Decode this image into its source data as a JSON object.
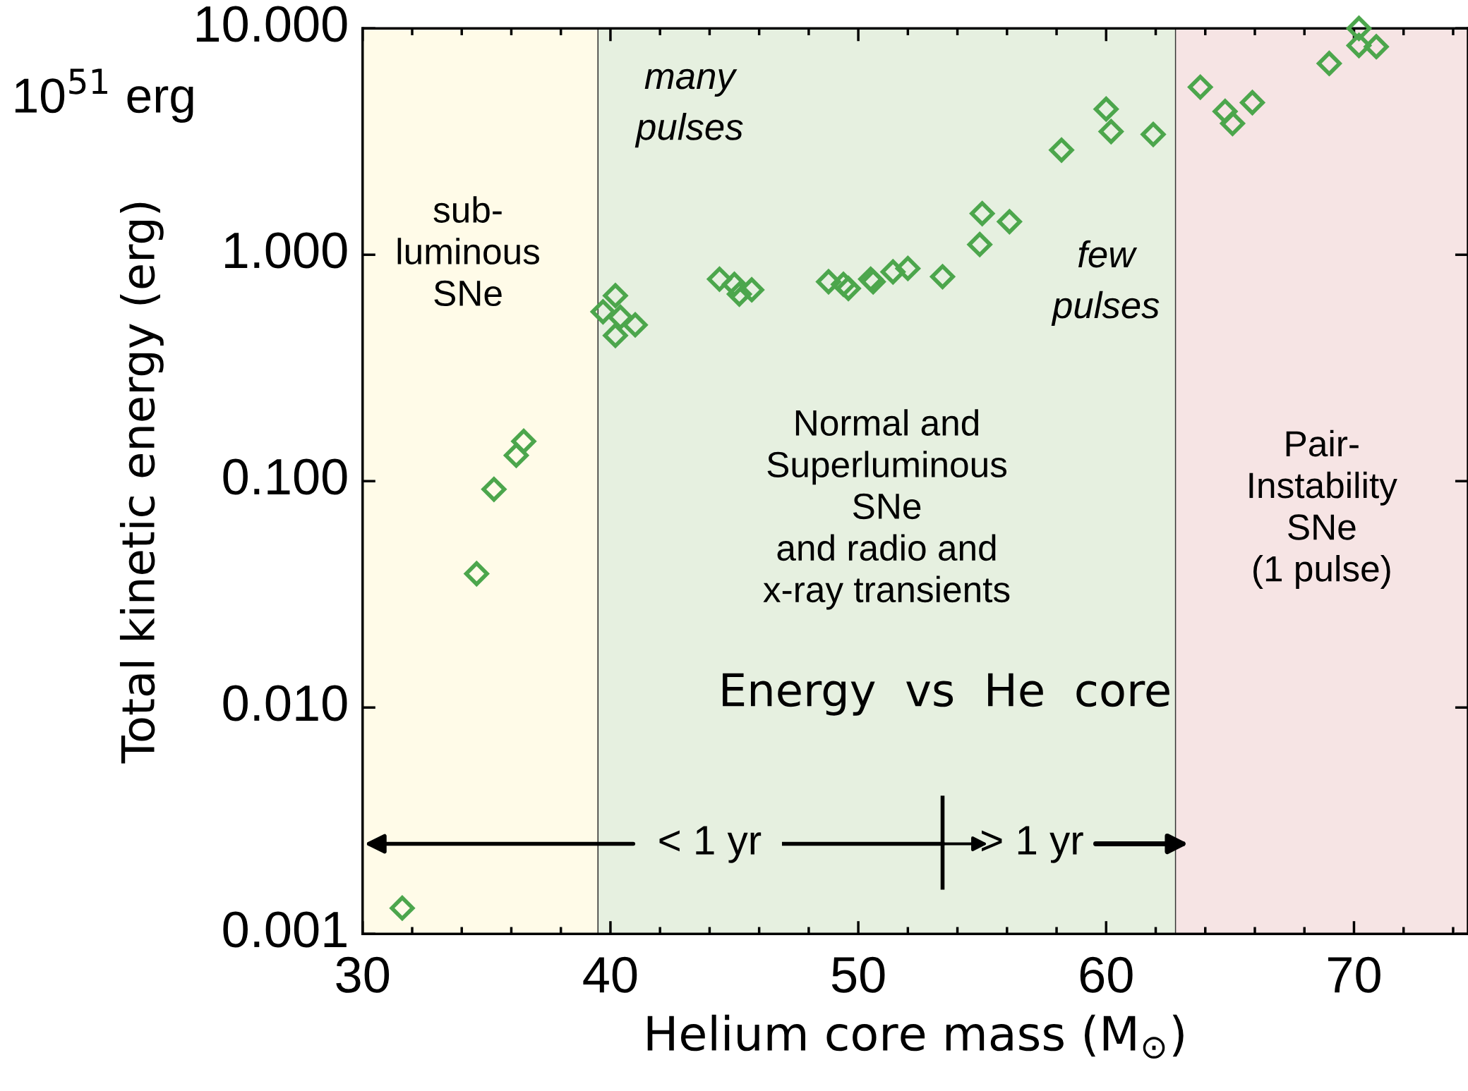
{
  "chart_data": {
    "type": "scatter",
    "xlabel": "Helium core mass (M$_{⊙}$)",
    "ylabel": "Total kinetic energy (erg)",
    "log": "y",
    "xlim": [
      30,
      74.6
    ],
    "ylim": [
      0.001,
      10
    ],
    "xticks": [
      30,
      40,
      50,
      60,
      70
    ],
    "yticks": [
      {
        "value": 0.001,
        "label": "0.001"
      },
      {
        "value": 0.01,
        "label": "0.010"
      },
      {
        "value": 0.1,
        "label": "0.100"
      },
      {
        "value": 1,
        "label": "1.000"
      },
      {
        "value": 10,
        "label": "10.000"
      }
    ],
    "marker": "diamond",
    "grid": false,
    "legend": false,
    "series": [
      {
        "color": "#4ca64c",
        "x": [
          31.6,
          34.6,
          35.3,
          36.2,
          36.5,
          39.7,
          40.2,
          40.4,
          40.2,
          41.0,
          44.4,
          45.0,
          45.2,
          45.7,
          48.8,
          49.4,
          49.6,
          50.5,
          50.6,
          51.4,
          52.0,
          53.4,
          54.9,
          55.0,
          56.1,
          58.2,
          60.0,
          60.2,
          61.9,
          63.8,
          64.8,
          65.1,
          65.9,
          69.0,
          70.2,
          70.9,
          70.2
        ],
        "values": [
          0.0013,
          0.039,
          0.092,
          0.13,
          0.15,
          0.56,
          0.66,
          0.53,
          0.44,
          0.49,
          0.78,
          0.74,
          0.67,
          0.7,
          0.76,
          0.74,
          0.71,
          0.78,
          0.76,
          0.84,
          0.87,
          0.8,
          1.11,
          1.52,
          1.4,
          2.9,
          4.4,
          3.5,
          3.4,
          5.5,
          4.3,
          3.8,
          4.7,
          7.0,
          8.4,
          8.3,
          10
        ]
      }
    ],
    "bands": [
      {
        "axis": "x",
        "from": 30,
        "to": 39.5,
        "label": "sub-\nluminous\nSNe",
        "color": "#fffbe8"
      },
      {
        "axis": "x",
        "from": 39.5,
        "to": 62.8,
        "label": "Normal and\nSuperluminous\nSNe\nand radio and\nx-ray transients",
        "color": "#e6f0e0"
      },
      {
        "axis": "x",
        "from": 62.8,
        "to": 74.6,
        "label": "Pair-\nInstability\nSNe\n(1 pulse)",
        "color": "#f6e4e4"
      }
    ],
    "annotations": [
      "10$^{51}$ erg",
      "many\npulses",
      "few\npulses",
      "Energy  vs  He  core",
      "< 1 yr",
      "> 1 yr"
    ]
  }
}
